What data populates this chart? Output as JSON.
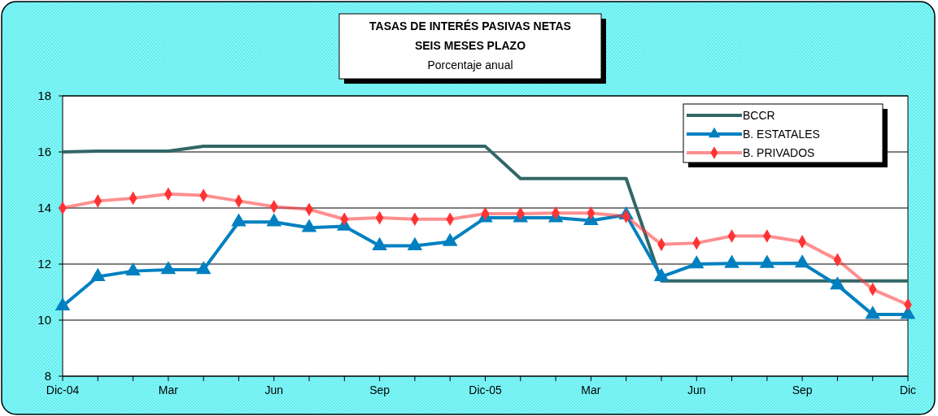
{
  "chart_data": {
    "type": "line",
    "title": "TASAS DE INTERÉS PASIVAS NETAS",
    "subtitle": "SEIS MESES PLAZO",
    "annotations": [
      "Porcentaje anual"
    ],
    "categories": [
      "Dic-04",
      null,
      null,
      "Mar",
      null,
      null,
      "Jun",
      null,
      null,
      "Sep",
      null,
      null,
      "Dic-05",
      null,
      null,
      "Mar",
      null,
      null,
      "Jun",
      null,
      null,
      "Sep",
      null,
      null,
      "Dic"
    ],
    "ylim": [
      8,
      18
    ],
    "yticks": [
      8,
      10,
      12,
      14,
      16,
      18
    ],
    "grid": "y",
    "legend": "top right",
    "series": [
      {
        "name": "BCCR",
        "color": "#336666",
        "marker": "none",
        "values": [
          16.0,
          16.03,
          16.03,
          16.03,
          16.2,
          16.2,
          16.2,
          16.2,
          16.2,
          16.2,
          16.2,
          16.2,
          16.2,
          15.05,
          15.05,
          15.05,
          15.05,
          11.4,
          11.4,
          11.4,
          11.4,
          11.4,
          11.4,
          11.4,
          11.4
        ]
      },
      {
        "name": "B. ESTATALES",
        "color": "#0080c0",
        "marker": "triangle",
        "values": [
          10.5,
          11.55,
          11.75,
          11.8,
          11.8,
          13.5,
          13.5,
          13.3,
          13.35,
          12.65,
          12.65,
          12.8,
          13.65,
          13.65,
          13.65,
          13.55,
          13.75,
          11.55,
          12.0,
          12.02,
          12.02,
          12.03,
          11.25,
          10.2,
          10.2
        ]
      },
      {
        "name": "B. PRIVADOS",
        "color": "#ff3333",
        "marker": "diamond",
        "values": [
          14.0,
          14.25,
          14.35,
          14.5,
          14.45,
          14.25,
          14.05,
          13.95,
          13.6,
          13.65,
          13.6,
          13.6,
          13.8,
          13.8,
          13.82,
          13.82,
          13.7,
          12.7,
          12.75,
          13.0,
          13.0,
          12.8,
          12.15,
          11.1,
          10.55
        ]
      }
    ]
  }
}
